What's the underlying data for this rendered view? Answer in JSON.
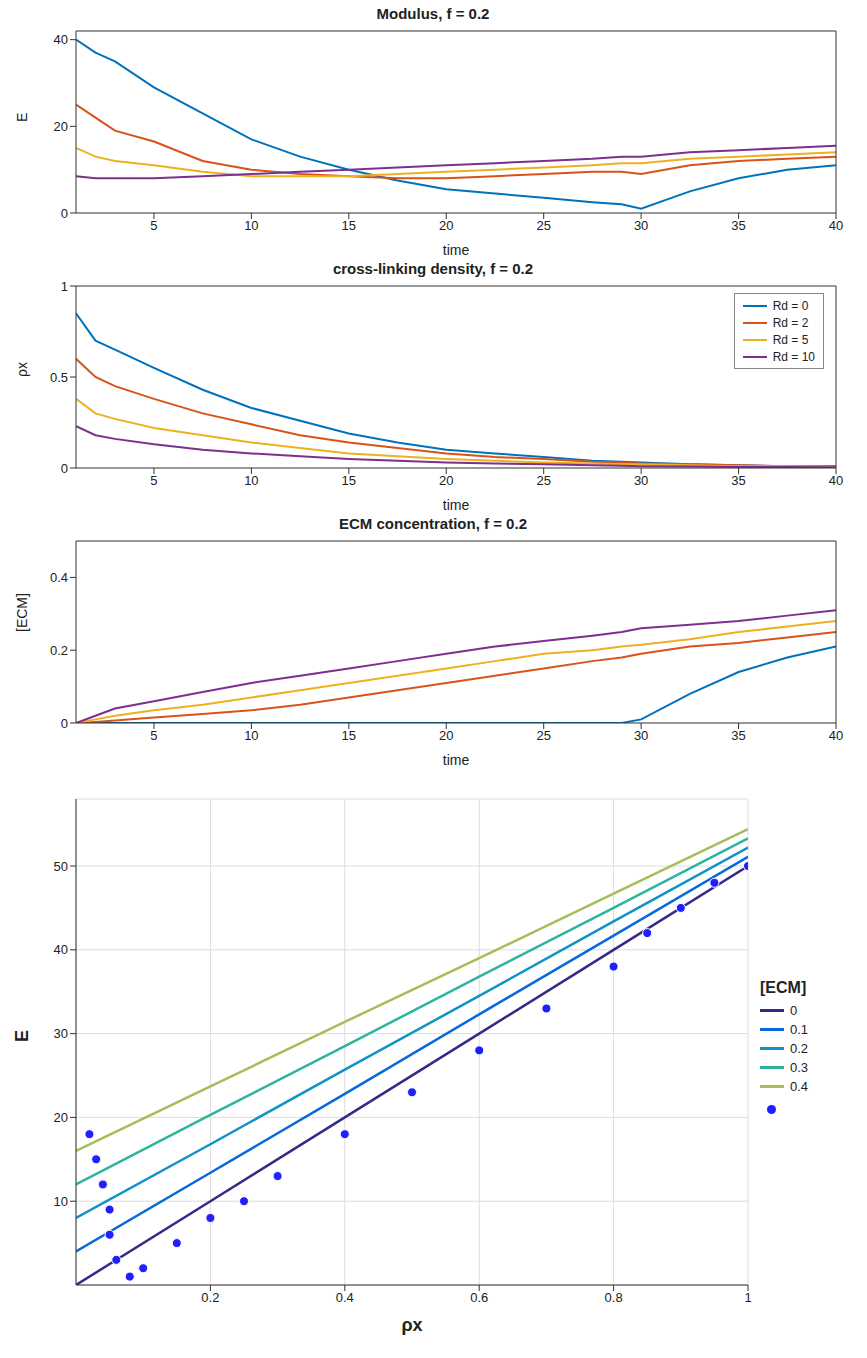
{
  "chart_data": [
    {
      "type": "line",
      "title": "Modulus, f = 0.2",
      "x_label": "time",
      "y_label": "E",
      "x": [
        1,
        2,
        3,
        5,
        7.5,
        10,
        12.5,
        15,
        17.5,
        20,
        22.5,
        25,
        27.5,
        29,
        30,
        32.5,
        35,
        37.5,
        40
      ],
      "xlim": [
        1,
        40
      ],
      "xticks": [
        5,
        10,
        15,
        20,
        25,
        30,
        35,
        40
      ],
      "ylim": [
        0,
        42
      ],
      "yticks": [
        0,
        20,
        40
      ],
      "grid": false,
      "series": [
        {
          "name": "Rd = 0",
          "color": "#0072BD",
          "values": [
            40,
            37,
            35,
            29,
            23,
            17,
            13,
            10,
            7.5,
            5.5,
            4.5,
            3.5,
            2.5,
            2,
            1,
            5,
            8,
            10,
            11
          ]
        },
        {
          "name": "Rd = 2",
          "color": "#D95319",
          "values": [
            25,
            22,
            19,
            16.5,
            12,
            10,
            9,
            8.5,
            8,
            8,
            8.5,
            9,
            9.5,
            9.5,
            9,
            11,
            12,
            12.5,
            13
          ]
        },
        {
          "name": "Rd = 5",
          "color": "#EDB120",
          "values": [
            15,
            13,
            12,
            11,
            9.5,
            8.5,
            8.5,
            8.5,
            9,
            9.5,
            10,
            10.5,
            11,
            11.5,
            11.5,
            12.5,
            13,
            13.5,
            14
          ]
        },
        {
          "name": "Rd = 10",
          "color": "#7E2F8E",
          "values": [
            8.5,
            8,
            8,
            8,
            8.5,
            9,
            9.5,
            10,
            10.5,
            11,
            11.5,
            12,
            12.5,
            13,
            13,
            14,
            14.5,
            15,
            15.5
          ]
        }
      ]
    },
    {
      "type": "line",
      "title": "cross-linking density, f = 0.2",
      "x_label": "time",
      "y_label": "ρx",
      "x": [
        1,
        2,
        3,
        5,
        7.5,
        10,
        12.5,
        15,
        17.5,
        20,
        22.5,
        25,
        27.5,
        29,
        30,
        32.5,
        35,
        37.5,
        40
      ],
      "xlim": [
        1,
        40
      ],
      "xticks": [
        5,
        10,
        15,
        20,
        25,
        30,
        35,
        40
      ],
      "ylim": [
        0,
        1
      ],
      "yticks": [
        0,
        0.5,
        1
      ],
      "grid": false,
      "legend": "upper right",
      "series": [
        {
          "name": "Rd = 0",
          "color": "#0072BD",
          "values": [
            0.85,
            0.7,
            0.65,
            0.55,
            0.43,
            0.33,
            0.26,
            0.19,
            0.14,
            0.1,
            0.08,
            0.06,
            0.04,
            0.035,
            0.03,
            0.02,
            0.015,
            0.01,
            0.01
          ]
        },
        {
          "name": "Rd = 2",
          "color": "#D95319",
          "values": [
            0.6,
            0.5,
            0.45,
            0.38,
            0.3,
            0.24,
            0.18,
            0.14,
            0.11,
            0.08,
            0.06,
            0.05,
            0.035,
            0.03,
            0.025,
            0.02,
            0.015,
            0.01,
            0.01
          ]
        },
        {
          "name": "Rd = 5",
          "color": "#EDB120",
          "values": [
            0.38,
            0.3,
            0.27,
            0.22,
            0.18,
            0.14,
            0.11,
            0.08,
            0.065,
            0.05,
            0.04,
            0.03,
            0.025,
            0.02,
            0.02,
            0.015,
            0.01,
            0.01,
            0.005
          ]
        },
        {
          "name": "Rd = 10",
          "color": "#7E2F8E",
          "values": [
            0.23,
            0.18,
            0.16,
            0.13,
            0.1,
            0.08,
            0.065,
            0.05,
            0.04,
            0.03,
            0.025,
            0.02,
            0.015,
            0.012,
            0.01,
            0.008,
            0.006,
            0.005,
            0.004
          ]
        }
      ]
    },
    {
      "type": "line",
      "title": "ECM concentration, f = 0.2",
      "x_label": "time",
      "y_label": "[ECM]",
      "x": [
        1,
        2,
        3,
        5,
        7.5,
        10,
        12.5,
        15,
        17.5,
        20,
        22.5,
        25,
        27.5,
        29,
        30,
        32.5,
        35,
        37.5,
        40
      ],
      "xlim": [
        1,
        40
      ],
      "xticks": [
        5,
        10,
        15,
        20,
        25,
        30,
        35,
        40
      ],
      "ylim": [
        0,
        0.5
      ],
      "yticks": [
        0,
        0.2,
        0.4
      ],
      "grid": false,
      "series": [
        {
          "name": "Rd = 0",
          "color": "#0072BD",
          "values": [
            0,
            0,
            0,
            0,
            0,
            0,
            0,
            0,
            0,
            0,
            0,
            0,
            0,
            0,
            0.01,
            0.08,
            0.14,
            0.18,
            0.21
          ]
        },
        {
          "name": "Rd = 2",
          "color": "#D95319",
          "values": [
            0,
            0.003,
            0.007,
            0.015,
            0.025,
            0.035,
            0.05,
            0.07,
            0.09,
            0.11,
            0.13,
            0.15,
            0.17,
            0.18,
            0.19,
            0.21,
            0.22,
            0.235,
            0.25
          ]
        },
        {
          "name": "Rd = 5",
          "color": "#EDB120",
          "values": [
            0,
            0.01,
            0.02,
            0.035,
            0.05,
            0.07,
            0.09,
            0.11,
            0.13,
            0.15,
            0.17,
            0.19,
            0.2,
            0.21,
            0.215,
            0.23,
            0.25,
            0.265,
            0.28
          ]
        },
        {
          "name": "Rd = 10",
          "color": "#7E2F8E",
          "values": [
            0,
            0.02,
            0.04,
            0.06,
            0.085,
            0.11,
            0.13,
            0.15,
            0.17,
            0.19,
            0.21,
            0.225,
            0.24,
            0.25,
            0.26,
            0.27,
            0.28,
            0.295,
            0.31
          ]
        }
      ]
    },
    {
      "type": "surface",
      "x_label": "ρx",
      "y_label": "E",
      "z_label": "[ECM]",
      "x": [
        0,
        0.2,
        0.4,
        0.6,
        0.8,
        1
      ],
      "xlim": [
        0,
        1
      ],
      "xticks": [
        0.2,
        0.4,
        0.6,
        0.8,
        1
      ],
      "ylim": [
        0,
        58
      ],
      "yticks": [
        10,
        20,
        30,
        40,
        50
      ],
      "grid": true,
      "legend": "right",
      "series": [
        {
          "name": "0",
          "color": "#352a87",
          "values": [
            0,
            10,
            20,
            30,
            40,
            50
          ]
        },
        {
          "name": "0.1",
          "color": "#0868dc",
          "values": [
            4,
            13.4,
            22.8,
            32.3,
            41.7,
            51.1
          ]
        },
        {
          "name": "0.2",
          "color": "#1193c8",
          "values": [
            8,
            16.8,
            25.7,
            34.5,
            43.4,
            52.2
          ]
        },
        {
          "name": "0.3",
          "color": "#2db49e",
          "values": [
            12,
            20.3,
            28.5,
            36.8,
            45,
            53.3
          ]
        },
        {
          "name": "0.4",
          "color": "#a5be5a",
          "values": [
            16,
            23.7,
            31.4,
            39,
            46.7,
            54.4
          ]
        }
      ],
      "points": {
        "color": "#1f1fff",
        "marker": "o",
        "x": [
          0.02,
          0.03,
          0.04,
          0.05,
          0.05,
          0.06,
          0.08,
          0.1,
          0.15,
          0.2,
          0.25,
          0.3,
          0.4,
          0.5,
          0.6,
          0.7,
          0.8,
          0.85,
          0.9,
          0.95,
          1
        ],
        "y": [
          18,
          15,
          12,
          9,
          6,
          3,
          1,
          2,
          5,
          8,
          10,
          13,
          18,
          23,
          28,
          33,
          38,
          42,
          45,
          48,
          50
        ]
      }
    }
  ]
}
